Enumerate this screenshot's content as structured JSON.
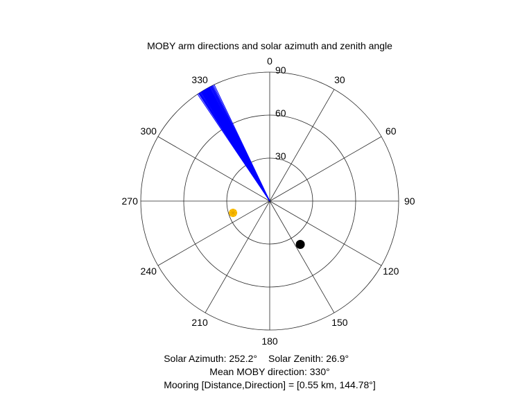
{
  "chart_data": {
    "type": "polar",
    "title": "MOBY arm directions and solar azimuth and zenith angle",
    "angular_axis": {
      "zero_location": "top",
      "direction": "clockwise",
      "ticks": [
        0,
        30,
        60,
        90,
        120,
        150,
        180,
        210,
        240,
        270,
        300,
        330
      ]
    },
    "radial_axis": {
      "range": [
        0,
        90
      ],
      "ticks": [
        30,
        60,
        90
      ],
      "label_angle_deg": 0
    },
    "grid": true,
    "series": [
      {
        "kind": "arm-lines",
        "color": "#0000ff",
        "r": 90,
        "theta_deg": [
          326.0,
          326.5,
          326.8,
          327.0,
          327.2,
          327.5,
          327.8,
          328.0,
          328.2,
          328.4,
          328.6,
          328.8,
          329.0,
          329.2,
          329.4,
          329.6,
          329.8,
          330.0,
          330.2,
          330.4,
          330.6,
          330.8,
          331.0,
          331.2,
          331.4,
          331.6,
          331.8,
          332.0,
          332.2,
          332.5,
          332.8,
          333.0,
          333.3,
          333.6,
          334.0,
          334.5
        ]
      },
      {
        "name": "Sun",
        "kind": "marker",
        "color": "#ffc000",
        "theta_deg": 252.2,
        "r": 26.9
      },
      {
        "name": "Mooring",
        "kind": "marker",
        "color": "#000000",
        "theta_deg": 144.78,
        "r": 37
      }
    ],
    "captions": {
      "solar_azimuth": "Solar Azimuth: 252.2°",
      "solar_zenith": "Solar Zenith: 26.9°",
      "mean_direction": "Mean MOBY direction: 330°",
      "mooring": "Mooring [Distance,Direction] = [0.55 km, 144.78°]"
    }
  }
}
